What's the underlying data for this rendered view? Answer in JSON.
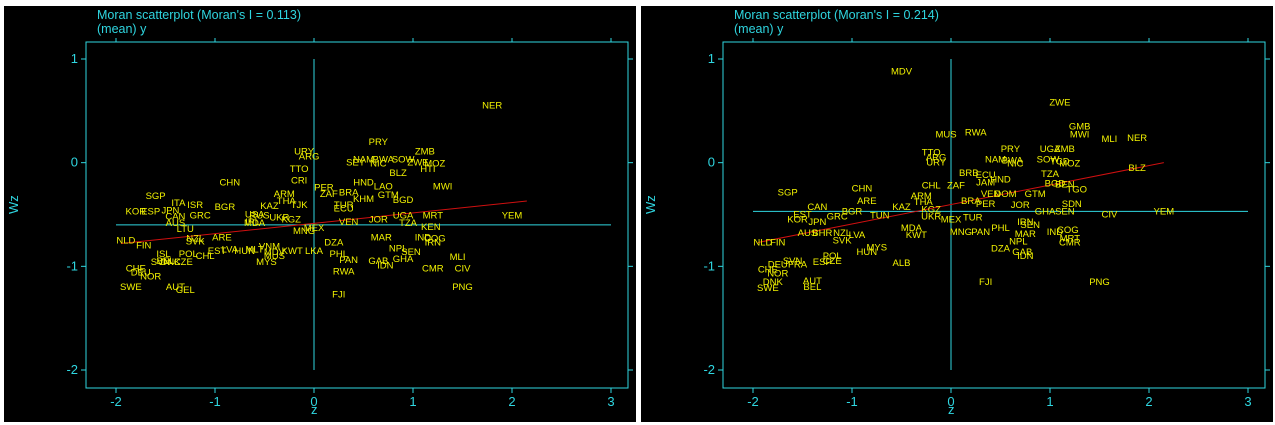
{
  "colors": {
    "axis": "#2fd6e0",
    "label": "#f2f200",
    "fit_line": "#d01010",
    "background": "#000000"
  },
  "chart_data": [
    {
      "type": "scatter",
      "title": "Moran scatterplot (Moran's I = 0.113)",
      "subtitle": "(mean) y",
      "xlabel": "z",
      "ylabel": "Wz",
      "xlim": [
        -2,
        3
      ],
      "ylim": [
        -2,
        1
      ],
      "xticks": [
        "-2",
        "-1",
        "0",
        "1",
        "2",
        "3"
      ],
      "yticks": [
        "-2",
        "-1",
        "0",
        "1"
      ],
      "grid": false,
      "ref_lines": {
        "x": 0,
        "y": -0.6
      },
      "fit_line": {
        "x1": -1.95,
        "y1": -0.78,
        "x2": 2.15,
        "y2": -0.37
      },
      "points": [
        {
          "label": "NER",
          "x": 1.8,
          "y": 0.55
        },
        {
          "label": "PRY",
          "x": 0.65,
          "y": 0.2
        },
        {
          "label": "URY",
          "x": -0.1,
          "y": 0.11
        },
        {
          "label": "ARG",
          "x": -0.05,
          "y": 0.06
        },
        {
          "label": "ZMB",
          "x": 1.12,
          "y": 0.11
        },
        {
          "label": "NAM",
          "x": 0.5,
          "y": 0.03
        },
        {
          "label": "BWA",
          "x": 0.7,
          "y": 0.03
        },
        {
          "label": "SOW",
          "x": 0.9,
          "y": 0.03
        },
        {
          "label": "SEY",
          "x": 0.42,
          "y": 0.0
        },
        {
          "label": "NIC",
          "x": 0.65,
          "y": -0.01
        },
        {
          "label": "ZWE",
          "x": 1.05,
          "y": 0.0
        },
        {
          "label": "MOZ",
          "x": 1.22,
          "y": -0.01
        },
        {
          "label": "HTI",
          "x": 1.15,
          "y": -0.06
        },
        {
          "label": "TTO",
          "x": -0.15,
          "y": -0.06
        },
        {
          "label": "BLZ",
          "x": 0.85,
          "y": -0.1
        },
        {
          "label": "CHN",
          "x": -0.85,
          "y": -0.19
        },
        {
          "label": "CRI",
          "x": -0.15,
          "y": -0.17
        },
        {
          "label": "MWI",
          "x": 1.3,
          "y": -0.23
        },
        {
          "label": "HND",
          "x": 0.5,
          "y": -0.19
        },
        {
          "label": "LAO",
          "x": 0.7,
          "y": -0.23
        },
        {
          "label": "PER",
          "x": 0.1,
          "y": -0.24
        },
        {
          "label": "ZAF",
          "x": 0.15,
          "y": -0.3
        },
        {
          "label": "BRA",
          "x": 0.35,
          "y": -0.29
        },
        {
          "label": "GTM",
          "x": 0.75,
          "y": -0.31
        },
        {
          "label": "KHM",
          "x": 0.5,
          "y": -0.35
        },
        {
          "label": "BGD",
          "x": 0.9,
          "y": -0.36
        },
        {
          "label": "ARM",
          "x": -0.3,
          "y": -0.3
        },
        {
          "label": "SGP",
          "x": -1.6,
          "y": -0.32
        },
        {
          "label": "THA",
          "x": -0.28,
          "y": -0.37
        },
        {
          "label": "TJK",
          "x": -0.15,
          "y": -0.41
        },
        {
          "label": "KAZ",
          "x": -0.45,
          "y": -0.42
        },
        {
          "label": "ITA",
          "x": -1.37,
          "y": -0.39
        },
        {
          "label": "ISR",
          "x": -1.2,
          "y": -0.41
        },
        {
          "label": "KOR",
          "x": -1.8,
          "y": -0.47
        },
        {
          "label": "ESP",
          "x": -1.65,
          "y": -0.47
        },
        {
          "label": "JPN",
          "x": -1.45,
          "y": -0.46
        },
        {
          "label": "BGR",
          "x": -0.9,
          "y": -0.43
        },
        {
          "label": "GRC",
          "x": -1.15,
          "y": -0.51
        },
        {
          "label": "CAN",
          "x": -1.4,
          "y": -0.52
        },
        {
          "label": "AUS",
          "x": -1.4,
          "y": -0.58
        },
        {
          "label": "LTU",
          "x": -1.3,
          "y": -0.64
        },
        {
          "label": "TUR",
          "x": 0.3,
          "y": -0.41
        },
        {
          "label": "ECU",
          "x": 0.3,
          "y": -0.44
        },
        {
          "label": "VEN",
          "x": 0.35,
          "y": -0.57
        },
        {
          "label": "JOR",
          "x": 0.65,
          "y": -0.55
        },
        {
          "label": "MRT",
          "x": 1.2,
          "y": -0.51
        },
        {
          "label": "YEM",
          "x": 2.0,
          "y": -0.51
        },
        {
          "label": "UGA",
          "x": 0.9,
          "y": -0.51
        },
        {
          "label": "TZA",
          "x": 0.95,
          "y": -0.58
        },
        {
          "label": "KEN",
          "x": 1.18,
          "y": -0.62
        },
        {
          "label": "USA",
          "x": -0.6,
          "y": -0.5
        },
        {
          "label": "RUS",
          "x": -0.55,
          "y": -0.51
        },
        {
          "label": "UKR",
          "x": -0.35,
          "y": -0.53
        },
        {
          "label": "KGZ",
          "x": -0.23,
          "y": -0.55
        },
        {
          "label": "IRL",
          "x": -0.62,
          "y": -0.57
        },
        {
          "label": "MDA",
          "x": -0.6,
          "y": -0.58
        },
        {
          "label": "MEX",
          "x": 0.0,
          "y": -0.63
        },
        {
          "label": "MNG",
          "x": -0.1,
          "y": -0.66
        },
        {
          "label": "NLD",
          "x": -1.9,
          "y": -0.75
        },
        {
          "label": "FIN",
          "x": -1.72,
          "y": -0.8
        },
        {
          "label": "NZL",
          "x": -1.2,
          "y": -0.73
        },
        {
          "label": "SVK",
          "x": -1.2,
          "y": -0.76
        },
        {
          "label": "ARE",
          "x": -0.93,
          "y": -0.72
        },
        {
          "label": "EST",
          "x": -0.98,
          "y": -0.85
        },
        {
          "label": "LVA",
          "x": -0.85,
          "y": -0.84
        },
        {
          "label": "HUN",
          "x": -0.7,
          "y": -0.85
        },
        {
          "label": "MLT",
          "x": -0.6,
          "y": -0.84
        },
        {
          "label": "DZA",
          "x": 0.2,
          "y": -0.77
        },
        {
          "label": "MAR",
          "x": 0.68,
          "y": -0.72
        },
        {
          "label": "IND",
          "x": 1.1,
          "y": -0.72
        },
        {
          "label": "COG",
          "x": 1.22,
          "y": -0.73
        },
        {
          "label": "IRN",
          "x": 1.2,
          "y": -0.77
        },
        {
          "label": "VNM",
          "x": -0.45,
          "y": -0.81
        },
        {
          "label": "LKA",
          "x": 0.0,
          "y": -0.85
        },
        {
          "label": "KWT",
          "x": -0.22,
          "y": -0.85
        },
        {
          "label": "MDV",
          "x": -0.4,
          "y": -0.86
        },
        {
          "label": "ISL",
          "x": -1.52,
          "y": -0.88
        },
        {
          "label": "POL",
          "x": -1.27,
          "y": -0.88
        },
        {
          "label": "CHL",
          "x": -1.1,
          "y": -0.9
        },
        {
          "label": "MUS",
          "x": -0.4,
          "y": -0.9
        },
        {
          "label": "NPL",
          "x": 0.85,
          "y": -0.83
        },
        {
          "label": "SEN",
          "x": 0.98,
          "y": -0.86
        },
        {
          "label": "PHL",
          "x": 0.25,
          "y": -0.88
        },
        {
          "label": "MLI",
          "x": 1.45,
          "y": -0.91
        },
        {
          "label": "DNK",
          "x": -1.45,
          "y": -0.96
        },
        {
          "label": "SVN",
          "x": -1.55,
          "y": -0.96
        },
        {
          "label": "CZE",
          "x": -1.32,
          "y": -0.96
        },
        {
          "label": "BEL",
          "x": -1.5,
          "y": -0.95
        },
        {
          "label": "PAN",
          "x": 0.35,
          "y": -0.94
        },
        {
          "label": "GAB",
          "x": 0.65,
          "y": -0.95
        },
        {
          "label": "GHA",
          "x": 0.9,
          "y": -0.93
        },
        {
          "label": "IDN",
          "x": 0.72,
          "y": -0.99
        },
        {
          "label": "MYS",
          "x": -0.48,
          "y": -0.96
        },
        {
          "label": "CHE",
          "x": -1.8,
          "y": -1.02
        },
        {
          "label": "DEU",
          "x": -1.75,
          "y": -1.06
        },
        {
          "label": "NOR",
          "x": -1.65,
          "y": -1.1
        },
        {
          "label": "RWA",
          "x": 0.3,
          "y": -1.05
        },
        {
          "label": "CMR",
          "x": 1.2,
          "y": -1.02
        },
        {
          "label": "CIV",
          "x": 1.5,
          "y": -1.02
        },
        {
          "label": "SWE",
          "x": -1.85,
          "y": -1.2
        },
        {
          "label": "AUT",
          "x": -1.4,
          "y": -1.2
        },
        {
          "label": "GEL",
          "x": -1.3,
          "y": -1.23
        },
        {
          "label": "PNG",
          "x": 1.5,
          "y": -1.2
        },
        {
          "label": "FJI",
          "x": 0.25,
          "y": -1.27
        }
      ]
    },
    {
      "type": "scatter",
      "title": "Moran scatterplot (Moran's I = 0.214)",
      "subtitle": "(mean) y",
      "xlabel": "z",
      "ylabel": "Wz",
      "xlim": [
        -2,
        3
      ],
      "ylim": [
        -2,
        1
      ],
      "xticks": [
        "-2",
        "-1",
        "0",
        "1",
        "2",
        "3"
      ],
      "yticks": [
        "-2",
        "-1",
        "0",
        "1"
      ],
      "grid": false,
      "ref_lines": {
        "x": 0,
        "y": -0.47
      },
      "fit_line": {
        "x1": -1.95,
        "y1": -0.77,
        "x2": 2.15,
        "y2": 0.0
      },
      "points": [
        {
          "label": "MDV",
          "x": -0.5,
          "y": 0.88
        },
        {
          "label": "ZWE",
          "x": 1.1,
          "y": 0.58
        },
        {
          "label": "GMB",
          "x": 1.3,
          "y": 0.35
        },
        {
          "label": "MWI",
          "x": 1.3,
          "y": 0.27
        },
        {
          "label": "MLI",
          "x": 1.6,
          "y": 0.23
        },
        {
          "label": "NER",
          "x": 1.88,
          "y": 0.24
        },
        {
          "label": "MUS",
          "x": -0.05,
          "y": 0.27
        },
        {
          "label": "RWA",
          "x": 0.25,
          "y": 0.29
        },
        {
          "label": "TTO",
          "x": -0.2,
          "y": 0.1
        },
        {
          "label": "ARG",
          "x": -0.15,
          "y": 0.05
        },
        {
          "label": "URY",
          "x": -0.15,
          "y": 0.0
        },
        {
          "label": "PRY",
          "x": 0.6,
          "y": 0.13
        },
        {
          "label": "UGA",
          "x": 1.0,
          "y": 0.13
        },
        {
          "label": "ZMB",
          "x": 1.15,
          "y": 0.13
        },
        {
          "label": "NAM",
          "x": 0.45,
          "y": 0.03
        },
        {
          "label": "BWA",
          "x": 0.62,
          "y": 0.02
        },
        {
          "label": "SOW",
          "x": 0.98,
          "y": 0.03
        },
        {
          "label": "NIC",
          "x": 0.65,
          "y": -0.01
        },
        {
          "label": "TCD",
          "x": 1.1,
          "y": 0.01
        },
        {
          "label": "MOZ",
          "x": 1.2,
          "y": -0.01
        },
        {
          "label": "BLZ",
          "x": 1.88,
          "y": -0.05
        },
        {
          "label": "BRB",
          "x": 0.18,
          "y": -0.1
        },
        {
          "label": "ECU",
          "x": 0.35,
          "y": -0.12
        },
        {
          "label": "HND",
          "x": 0.5,
          "y": -0.16
        },
        {
          "label": "TZA",
          "x": 1.0,
          "y": -0.11
        },
        {
          "label": "BGD",
          "x": 1.05,
          "y": -0.2
        },
        {
          "label": "BEN",
          "x": 1.15,
          "y": -0.21
        },
        {
          "label": "TGO",
          "x": 1.27,
          "y": -0.26
        },
        {
          "label": "CHN",
          "x": -0.9,
          "y": -0.25
        },
        {
          "label": "ARE",
          "x": -0.85,
          "y": -0.37
        },
        {
          "label": "SGP",
          "x": -1.65,
          "y": -0.29
        },
        {
          "label": "CHL",
          "x": -0.2,
          "y": -0.22
        },
        {
          "label": "ZAF",
          "x": 0.05,
          "y": -0.22
        },
        {
          "label": "JAM",
          "x": 0.35,
          "y": -0.19
        },
        {
          "label": "VEN",
          "x": 0.4,
          "y": -0.3
        },
        {
          "label": "DOM",
          "x": 0.55,
          "y": -0.3
        },
        {
          "label": "GTM",
          "x": 0.85,
          "y": -0.3
        },
        {
          "label": "BRA",
          "x": 0.2,
          "y": -0.37
        },
        {
          "label": "PER",
          "x": 0.35,
          "y": -0.4
        },
        {
          "label": "JOR",
          "x": 0.7,
          "y": -0.41
        },
        {
          "label": "SDN",
          "x": 1.22,
          "y": -0.4
        },
        {
          "label": "GHA",
          "x": 0.95,
          "y": -0.47
        },
        {
          "label": "SEN",
          "x": 1.15,
          "y": -0.47
        },
        {
          "label": "CIV",
          "x": 1.6,
          "y": -0.5
        },
        {
          "label": "YEM",
          "x": 2.15,
          "y": -0.47
        },
        {
          "label": "ARM",
          "x": -0.3,
          "y": -0.32
        },
        {
          "label": "THA",
          "x": -0.28,
          "y": -0.38
        },
        {
          "label": "KAZ",
          "x": -0.5,
          "y": -0.43
        },
        {
          "label": "KGZ",
          "x": -0.2,
          "y": -0.45
        },
        {
          "label": "UKR",
          "x": -0.2,
          "y": -0.52
        },
        {
          "label": "MEX",
          "x": 0.0,
          "y": -0.55
        },
        {
          "label": "TUR",
          "x": 0.22,
          "y": -0.53
        },
        {
          "label": "IRN",
          "x": 0.75,
          "y": -0.57
        },
        {
          "label": "SEN",
          "x": 0.8,
          "y": -0.6
        },
        {
          "label": "CAN",
          "x": -1.35,
          "y": -0.43
        },
        {
          "label": "BGR",
          "x": -1.0,
          "y": -0.47
        },
        {
          "label": "TUN",
          "x": -0.72,
          "y": -0.51
        },
        {
          "label": "EST",
          "x": -1.5,
          "y": -0.5
        },
        {
          "label": "GRC",
          "x": -1.15,
          "y": -0.52
        },
        {
          "label": "JPN",
          "x": -1.35,
          "y": -0.57
        },
        {
          "label": "KOR",
          "x": -1.55,
          "y": -0.55
        },
        {
          "label": "MNG",
          "x": 0.1,
          "y": -0.67
        },
        {
          "label": "PAN",
          "x": 0.3,
          "y": -0.67
        },
        {
          "label": "PHL",
          "x": 0.5,
          "y": -0.63
        },
        {
          "label": "MAR",
          "x": 0.75,
          "y": -0.69
        },
        {
          "label": "IND",
          "x": 1.05,
          "y": -0.67
        },
        {
          "label": "COG",
          "x": 1.18,
          "y": -0.65
        },
        {
          "label": "MRT",
          "x": 1.2,
          "y": -0.73
        },
        {
          "label": "NPL",
          "x": 0.68,
          "y": -0.76
        },
        {
          "label": "CMR",
          "x": 1.2,
          "y": -0.77
        },
        {
          "label": "DZA",
          "x": 0.5,
          "y": -0.83
        },
        {
          "label": "GAB",
          "x": 0.72,
          "y": -0.86
        },
        {
          "label": "IDN",
          "x": 0.75,
          "y": -0.9
        },
        {
          "label": "NLD",
          "x": -1.9,
          "y": -0.77
        },
        {
          "label": "FIN",
          "x": -1.75,
          "y": -0.77
        },
        {
          "label": "AUS",
          "x": -1.45,
          "y": -0.68
        },
        {
          "label": "BHR",
          "x": -1.3,
          "y": -0.68
        },
        {
          "label": "LVA",
          "x": -0.95,
          "y": -0.7
        },
        {
          "label": "NZL",
          "x": -1.1,
          "y": -0.68
        },
        {
          "label": "SVK",
          "x": -1.1,
          "y": -0.75
        },
        {
          "label": "MDA",
          "x": -0.4,
          "y": -0.63
        },
        {
          "label": "KWT",
          "x": -0.35,
          "y": -0.7
        },
        {
          "label": "MYS",
          "x": -0.75,
          "y": -0.82
        },
        {
          "label": "HUN",
          "x": -0.85,
          "y": -0.86
        },
        {
          "label": "ALB",
          "x": -0.5,
          "y": -0.97
        },
        {
          "label": "SVN",
          "x": -1.6,
          "y": -0.95
        },
        {
          "label": "POL",
          "x": -1.2,
          "y": -0.9
        },
        {
          "label": "CZE",
          "x": -1.2,
          "y": -0.95
        },
        {
          "label": "ESP",
          "x": -1.3,
          "y": -0.96
        },
        {
          "label": "DEU",
          "x": -1.75,
          "y": -0.98
        },
        {
          "label": "FRA",
          "x": -1.55,
          "y": -0.98
        },
        {
          "label": "CHE",
          "x": -1.85,
          "y": -1.03
        },
        {
          "label": "NOR",
          "x": -1.75,
          "y": -1.07
        },
        {
          "label": "DNK",
          "x": -1.8,
          "y": -1.15
        },
        {
          "label": "AUT",
          "x": -1.4,
          "y": -1.14
        },
        {
          "label": "SWE",
          "x": -1.85,
          "y": -1.21
        },
        {
          "label": "BEL",
          "x": -1.4,
          "y": -1.2
        },
        {
          "label": "FJI",
          "x": 0.35,
          "y": -1.15
        },
        {
          "label": "PNG",
          "x": 1.5,
          "y": -1.15
        }
      ]
    }
  ]
}
